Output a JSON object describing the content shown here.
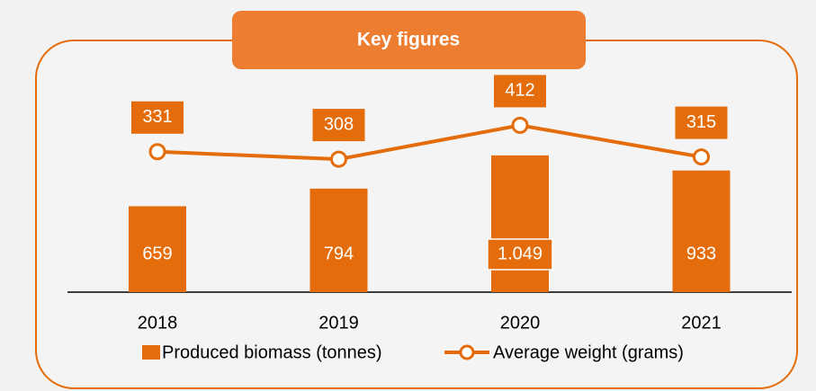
{
  "chart_data": {
    "type": "bar-line",
    "title": "Key figures",
    "categories": [
      "2018",
      "2019",
      "2020",
      "2021"
    ],
    "series": [
      {
        "name": "Produced biomass (tonnes)",
        "type": "bar",
        "color": "#E46C0A",
        "values": [
          659,
          794,
          1049,
          933
        ],
        "value_labels": [
          "659",
          "794",
          "1.049",
          "933"
        ]
      },
      {
        "name": "Average weight (grams)",
        "type": "line",
        "color": "#E46C0A",
        "axis": "y2",
        "values": [
          331,
          308,
          412,
          315
        ]
      }
    ],
    "ylim": [
      0,
      2000
    ],
    "y2lim": [
      -100,
      700
    ],
    "legend": "bottom"
  }
}
